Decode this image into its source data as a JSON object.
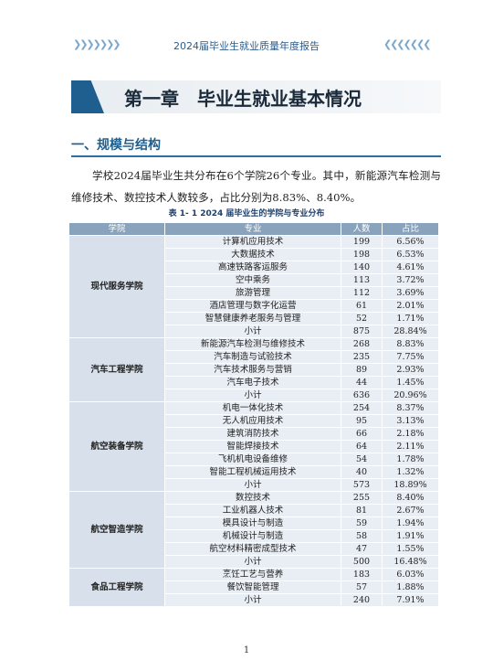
{
  "header": {
    "title": "2024届毕业生就业质量年度报告"
  },
  "chapter": {
    "title": "第一章　毕业生就业基本情况"
  },
  "section": {
    "title": "一、规模与结构",
    "paragraph": "学校2024届毕业生共分布在6个学院26个专业。其中，新能源汽车检测与维修技术、数控技术人数较多，占比分别为8.83%、8.40%。"
  },
  "table": {
    "caption": "表 1- 1  2024 届毕业生的学院与专业分布",
    "header": [
      "学院",
      "专业",
      "人数",
      "占比"
    ],
    "groups": [
      {
        "college": "现代服务学院",
        "rows": [
          [
            "计算机应用技术",
            199,
            "6.56%"
          ],
          [
            "大数据技术",
            198,
            "6.53%"
          ],
          [
            "高速铁路客运服务",
            140,
            "4.61%"
          ],
          [
            "空中乘务",
            113,
            "3.72%"
          ],
          [
            "旅游管理",
            112,
            "3.69%"
          ],
          [
            "酒店管理与数字化运营",
            61,
            "2.01%"
          ],
          [
            "智慧健康养老服务与管理",
            52,
            "1.71%"
          ],
          [
            "小计",
            875,
            "28.84%"
          ]
        ]
      },
      {
        "college": "汽车工程学院",
        "rows": [
          [
            "新能源汽车检测与维修技术",
            268,
            "8.83%"
          ],
          [
            "汽车制造与试验技术",
            235,
            "7.75%"
          ],
          [
            "汽车技术服务与营销",
            89,
            "2.93%"
          ],
          [
            "汽车电子技术",
            44,
            "1.45%"
          ],
          [
            "小计",
            636,
            "20.96%"
          ]
        ]
      },
      {
        "college": "航空装备学院",
        "rows": [
          [
            "机电一体化技术",
            254,
            "8.37%"
          ],
          [
            "无人机应用技术",
            95,
            "3.13%"
          ],
          [
            "建筑消防技术",
            66,
            "2.18%"
          ],
          [
            "智能焊接技术",
            64,
            "2.11%"
          ],
          [
            "飞机机电设备维修",
            54,
            "1.78%"
          ],
          [
            "智能工程机械运用技术",
            40,
            "1.32%"
          ],
          [
            "小计",
            573,
            "18.89%"
          ]
        ]
      },
      {
        "college": "航空智造学院",
        "rows": [
          [
            "数控技术",
            255,
            "8.40%"
          ],
          [
            "工业机器人技术",
            81,
            "2.67%"
          ],
          [
            "模具设计与制造",
            59,
            "1.94%"
          ],
          [
            "机械设计与制造",
            58,
            "1.91%"
          ],
          [
            "航空材料精密成型技术",
            47,
            "1.55%"
          ],
          [
            "小计",
            500,
            "16.48%"
          ]
        ]
      },
      {
        "college": "食品工程学院",
        "rows": [
          [
            "烹饪工艺与营养",
            183,
            "6.03%"
          ],
          [
            "餐饮智能管理",
            57,
            "1.88%"
          ],
          [
            "小计",
            240,
            "7.91%"
          ]
        ]
      }
    ]
  },
  "footer": {
    "page": "1"
  }
}
